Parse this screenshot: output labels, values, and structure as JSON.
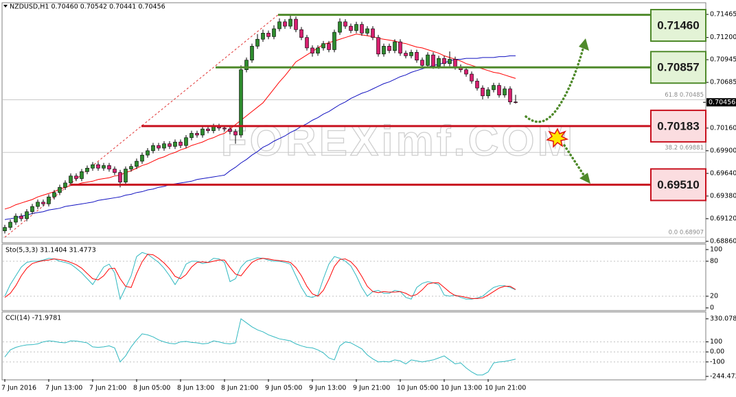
{
  "chart_data": [
    {
      "type": "candlestick",
      "title": "NZDUSD,H1  0.70460 0.70542 0.70441 0.70456",
      "watermark": "FOREXimf.COM",
      "categories": [
        "7 Jun 2016",
        null,
        null,
        null,
        null,
        null,
        null,
        null,
        "7 Jun 13:00",
        null,
        null,
        null,
        null,
        null,
        null,
        null,
        "7 Jun 21:00",
        null,
        null,
        null,
        null,
        null,
        null,
        null,
        "8 Jun 05:00",
        null,
        null,
        null,
        null,
        null,
        null,
        null,
        "8 Jun 13:00",
        null,
        null,
        null,
        null,
        null,
        null,
        null,
        "8 Jun 21:00",
        null,
        null,
        null,
        null,
        null,
        null,
        null,
        "9 Jun 05:00",
        null,
        null,
        null,
        null,
        null,
        null,
        null,
        "9 Jun 13:00",
        null,
        null,
        null,
        null,
        null,
        null,
        null,
        "9 Jun 21:00",
        null,
        null,
        null,
        null,
        null,
        null,
        null,
        "10 Jun 05:00",
        null,
        null,
        null,
        null,
        null,
        null,
        null,
        "10 Jun 13:00",
        null,
        null,
        null,
        null,
        null,
        null,
        null,
        "10 Jun 21:00",
        null,
        null,
        null,
        null,
        null
      ],
      "open": [
        0.6898,
        0.6902,
        0.6908,
        0.6915,
        0.6912,
        0.692,
        0.6926,
        0.6931,
        0.6929,
        0.6937,
        0.6942,
        0.6948,
        0.6953,
        0.6961,
        0.6958,
        0.6966,
        0.697,
        0.6974,
        0.697,
        0.6973,
        0.6969,
        0.6965,
        0.6954,
        0.6969,
        0.6972,
        0.6978,
        0.6985,
        0.699,
        0.6996,
        0.6993,
        0.6998,
        0.6995,
        0.7,
        0.6996,
        0.7005,
        0.701,
        0.7008,
        0.7015,
        0.7013,
        0.7018,
        0.7016,
        0.7015,
        0.7012,
        0.7008,
        0.7083,
        0.7094,
        0.711,
        0.7118,
        0.7125,
        0.7121,
        0.713,
        0.7138,
        0.7133,
        0.7141,
        0.7129,
        0.712,
        0.7108,
        0.7102,
        0.7108,
        0.7113,
        0.7106,
        0.7126,
        0.7138,
        0.7133,
        0.7128,
        0.7135,
        0.7125,
        0.713,
        0.712,
        0.7101,
        0.711,
        0.7105,
        0.7115,
        0.7102,
        0.7099,
        0.7103,
        0.7094,
        0.7088,
        0.71,
        0.7087,
        0.7096,
        0.709,
        0.7095,
        0.7086,
        0.7083,
        0.7078,
        0.707,
        0.7062,
        0.7053,
        0.706,
        0.7065,
        0.7054,
        0.7061,
        0.7046
      ],
      "high": [
        0.6905,
        0.6911,
        0.6918,
        0.6918,
        0.6923,
        0.6929,
        0.6934,
        0.6934,
        0.694,
        0.6945,
        0.6951,
        0.6956,
        0.6964,
        0.6964,
        0.6969,
        0.6973,
        0.6977,
        0.6977,
        0.6976,
        0.6976,
        0.6972,
        0.6968,
        0.6972,
        0.6975,
        0.6981,
        0.6988,
        0.6993,
        0.6999,
        0.6999,
        0.7001,
        0.7001,
        0.7003,
        0.7003,
        0.7008,
        0.7013,
        0.7013,
        0.7018,
        0.7018,
        0.7021,
        0.7021,
        0.7019,
        0.7018,
        0.7015,
        0.7088,
        0.7097,
        0.7113,
        0.7124,
        0.7129,
        0.7128,
        0.7134,
        0.7142,
        0.7141,
        0.7146,
        0.7144,
        0.7132,
        0.7123,
        0.7111,
        0.7111,
        0.7116,
        0.7116,
        0.7129,
        0.7142,
        0.7141,
        0.7136,
        0.7138,
        0.7138,
        0.7133,
        0.7133,
        0.7123,
        0.7113,
        0.7113,
        0.7118,
        0.7118,
        0.7105,
        0.7106,
        0.7106,
        0.7097,
        0.7103,
        0.7103,
        0.7099,
        0.7099,
        0.7104,
        0.7098,
        0.7089,
        0.7086,
        0.7081,
        0.7073,
        0.7065,
        0.7063,
        0.7068,
        0.7068,
        0.7064,
        0.7064,
        0.70542
      ],
      "low": [
        0.6895,
        0.6899,
        0.6905,
        0.6909,
        0.6909,
        0.6917,
        0.6923,
        0.6926,
        0.6926,
        0.6934,
        0.6939,
        0.6945,
        0.695,
        0.6955,
        0.6955,
        0.6963,
        0.6967,
        0.6967,
        0.6967,
        0.6966,
        0.6962,
        0.6948,
        0.6951,
        0.6966,
        0.6969,
        0.6975,
        0.6982,
        0.6987,
        0.699,
        0.699,
        0.6992,
        0.6992,
        0.6993,
        0.6993,
        0.7002,
        0.7005,
        0.7005,
        0.701,
        0.701,
        0.7013,
        0.7012,
        0.7009,
        0.6998,
        0.7005,
        0.708,
        0.7091,
        0.7107,
        0.7115,
        0.7118,
        0.7118,
        0.7127,
        0.713,
        0.713,
        0.7126,
        0.7117,
        0.7105,
        0.7098,
        0.7099,
        0.7105,
        0.7103,
        0.7103,
        0.7123,
        0.713,
        0.7125,
        0.7125,
        0.7122,
        0.7122,
        0.7117,
        0.7098,
        0.7098,
        0.7102,
        0.7102,
        0.7099,
        0.7096,
        0.7096,
        0.7091,
        0.7085,
        0.7085,
        0.7084,
        0.7084,
        0.7087,
        0.7087,
        0.7083,
        0.708,
        0.7075,
        0.7067,
        0.7059,
        0.7049,
        0.705,
        0.7057,
        0.7051,
        0.7051,
        0.7043,
        0.70441
      ],
      "close": [
        0.6902,
        0.6908,
        0.6915,
        0.6912,
        0.692,
        0.6926,
        0.6931,
        0.6929,
        0.6937,
        0.6942,
        0.6948,
        0.6953,
        0.6961,
        0.6958,
        0.6966,
        0.697,
        0.6974,
        0.697,
        0.6973,
        0.6969,
        0.6965,
        0.6954,
        0.6969,
        0.6972,
        0.6978,
        0.6985,
        0.699,
        0.6996,
        0.6993,
        0.6998,
        0.6995,
        0.7,
        0.6996,
        0.7005,
        0.701,
        0.7008,
        0.7015,
        0.7013,
        0.7018,
        0.7016,
        0.7015,
        0.7012,
        0.7008,
        0.7083,
        0.7094,
        0.711,
        0.7118,
        0.7125,
        0.7121,
        0.713,
        0.7138,
        0.7133,
        0.7141,
        0.7129,
        0.712,
        0.7108,
        0.7102,
        0.7108,
        0.7113,
        0.7106,
        0.7126,
        0.7138,
        0.7133,
        0.7128,
        0.7135,
        0.7125,
        0.713,
        0.712,
        0.7101,
        0.711,
        0.7105,
        0.7115,
        0.7102,
        0.7099,
        0.7103,
        0.7094,
        0.7088,
        0.71,
        0.7087,
        0.7096,
        0.709,
        0.7095,
        0.7086,
        0.7083,
        0.7078,
        0.707,
        0.7062,
        0.7053,
        0.706,
        0.7065,
        0.7054,
        0.7061,
        0.7046,
        0.70456
      ],
      "bull_color": "#2e8b2e",
      "bear_color": "#d6206f",
      "lines": [
        {
          "color": "#ff0000",
          "values": [
            0.6923,
            0.6925,
            0.6928,
            0.693,
            0.6932,
            0.6934,
            0.6937,
            0.6939,
            0.6941,
            0.6943,
            0.6946,
            0.6948,
            0.695,
            0.6951,
            0.6953,
            0.6954,
            0.6955,
            0.6957,
            0.6958,
            0.6959,
            0.6961,
            0.6962,
            0.6965,
            0.6967,
            0.697,
            0.6973,
            0.6975,
            0.6978,
            0.6981,
            0.6983,
            0.6986,
            0.6988,
            0.6991,
            0.6993,
            0.6996,
            0.6998,
            0.7,
            0.7003,
            0.7005,
            0.7008,
            0.701,
            0.7015,
            0.702,
            0.7025,
            0.703,
            0.7035,
            0.704,
            0.7045,
            0.7053,
            0.7061,
            0.7069,
            0.7076,
            0.7084,
            0.7092,
            0.7096,
            0.71,
            0.7104,
            0.7108,
            0.7112,
            0.7114,
            0.7116,
            0.7118,
            0.712,
            0.7122,
            0.7124,
            0.7123,
            0.7122,
            0.7121,
            0.7119,
            0.7118,
            0.7117,
            0.7116,
            0.7114,
            0.7113,
            0.7111,
            0.7109,
            0.7108,
            0.7106,
            0.7104,
            0.7102,
            0.7099,
            0.7097,
            0.7095,
            0.7093,
            0.709,
            0.7088,
            0.7086,
            0.7084,
            0.7082,
            0.708,
            0.7079,
            0.7077,
            0.7075,
            0.7073
          ]
        },
        {
          "color": "#1010c0",
          "values": [
            0.6911,
            0.6912,
            0.6913,
            0.6915,
            0.6916,
            0.6918,
            0.6919,
            0.692,
            0.6922,
            0.6923,
            0.6924,
            0.6926,
            0.6927,
            0.6928,
            0.6929,
            0.693,
            0.6931,
            0.6933,
            0.6934,
            0.6935,
            0.6936,
            0.6937,
            0.6939,
            0.694,
            0.6942,
            0.6943,
            0.6945,
            0.6946,
            0.6948,
            0.6949,
            0.6951,
            0.6952,
            0.6953,
            0.6954,
            0.6955,
            0.6957,
            0.6958,
            0.6959,
            0.696,
            0.6961,
            0.6962,
            0.6967,
            0.6971,
            0.6976,
            0.698,
            0.6985,
            0.6989,
            0.6994,
            0.6997,
            0.7001,
            0.7004,
            0.7007,
            0.7011,
            0.7014,
            0.7018,
            0.7021,
            0.7025,
            0.7028,
            0.7032,
            0.7035,
            0.7039,
            0.7043,
            0.7046,
            0.705,
            0.7053,
            0.7056,
            0.7058,
            0.7061,
            0.7064,
            0.7067,
            0.7069,
            0.7072,
            0.7075,
            0.7077,
            0.708,
            0.7082,
            0.7084,
            0.7086,
            0.7088,
            0.7089,
            0.7091,
            0.7093,
            0.7095,
            0.7095,
            0.7096,
            0.7096,
            0.7096,
            0.7097,
            0.7097,
            0.7097,
            0.7098,
            0.7098,
            0.7099,
            0.7099
          ]
        }
      ],
      "levels": [
        {
          "value": 0.7146,
          "label": "0.71460",
          "color": "#4f8a2b",
          "box_color": "#e3f3d6"
        },
        {
          "value": 0.70857,
          "label": "0.70857",
          "color": "#4f8a2b",
          "box_color": "#e3f3d6"
        },
        {
          "value": 0.70183,
          "label": "0.70183",
          "color": "#c8101e",
          "box_color": "#fbdde0"
        },
        {
          "value": 0.6951,
          "label": "0.69510",
          "color": "#c8101e",
          "box_color": "#fbdde0"
        }
      ],
      "fib_levels": [
        {
          "value": 0.70485,
          "label": "61.8 0.70485"
        },
        {
          "value": 0.69881,
          "label": "38.2 0.69881"
        },
        {
          "value": 0.68907,
          "label": "0.0 0.68907"
        }
      ],
      "ylim": [
        0.68844,
        0.71591
      ],
      "yticks": [
        {
          "value": 0.71465,
          "label": "0.71465"
        },
        {
          "value": 0.712,
          "label": "0.71200"
        },
        {
          "value": 0.70945,
          "label": "0.70945"
        },
        {
          "value": 0.70685,
          "label": "0.70685"
        },
        {
          "value": 0.7016,
          "label": "0.70160"
        },
        {
          "value": 0.699,
          "label": "0.69900"
        },
        {
          "value": 0.6964,
          "label": "0.69640"
        },
        {
          "value": 0.6938,
          "label": "0.69380"
        },
        {
          "value": 0.6912,
          "label": "0.69120"
        },
        {
          "value": 0.6886,
          "label": "0.68860"
        }
      ]
    },
    {
      "type": "line",
      "title": "Sto(5,3,3) 31.1404 31.4773",
      "series": [
        {
          "color": "#30b8c0",
          "values": [
            20,
            40,
            55,
            70,
            78,
            80,
            80,
            82,
            85,
            84,
            80,
            78,
            75,
            68,
            60,
            50,
            40,
            55,
            70,
            75,
            60,
            15,
            35,
            55,
            88,
            95,
            92,
            85,
            78,
            68,
            55,
            40,
            55,
            75,
            80,
            80,
            76,
            78,
            85,
            84,
            78,
            45,
            50,
            70,
            80,
            83,
            86,
            85,
            82,
            80,
            80,
            78,
            75,
            55,
            35,
            20,
            18,
            22,
            50,
            75,
            88,
            85,
            80,
            72,
            55,
            35,
            20,
            28,
            30,
            25,
            25,
            30,
            28,
            18,
            15,
            35,
            42,
            45,
            43,
            40,
            22,
            20,
            22,
            18,
            15,
            15,
            17,
            20,
            28,
            35,
            38,
            38,
            35,
            31.1404
          ]
        },
        {
          "color": "#ff0000",
          "values": [
            18,
            25,
            38,
            55,
            68,
            76,
            79,
            81,
            82,
            84,
            83,
            81,
            78,
            74,
            68,
            59,
            50,
            48,
            55,
            67,
            68,
            50,
            37,
            35,
            59,
            79,
            92,
            91,
            85,
            77,
            67,
            54,
            50,
            57,
            70,
            78,
            79,
            78,
            80,
            82,
            82,
            69,
            58,
            55,
            67,
            78,
            83,
            85,
            84,
            82,
            81,
            80,
            78,
            69,
            55,
            37,
            24,
            20,
            30,
            49,
            71,
            83,
            84,
            79,
            69,
            54,
            37,
            28,
            26,
            28,
            27,
            27,
            28,
            25,
            20,
            23,
            31,
            41,
            43,
            43,
            35,
            27,
            21,
            20,
            18,
            16,
            16,
            17,
            22,
            28,
            34,
            37,
            37,
            31.4773
          ]
        }
      ],
      "ylim": [
        -3.5,
        108.2
      ],
      "yticks": [
        100,
        80,
        20,
        0
      ],
      "grid": true
    },
    {
      "type": "line",
      "title": "CCI(14) -71.9781",
      "series": [
        {
          "color": "#30b8c0",
          "values": [
            -50,
            20,
            45,
            60,
            70,
            72,
            80,
            100,
            110,
            105,
            95,
            90,
            110,
            108,
            100,
            90,
            50,
            45,
            50,
            60,
            40,
            -100,
            -40,
            50,
            120,
            180,
            170,
            150,
            120,
            100,
            85,
            80,
            100,
            105,
            95,
            90,
            80,
            85,
            110,
            100,
            85,
            80,
            90,
            330,
            290,
            250,
            220,
            200,
            170,
            150,
            130,
            120,
            110,
            80,
            60,
            45,
            40,
            20,
            -10,
            -60,
            -80,
            60,
            100,
            90,
            60,
            30,
            -30,
            -70,
            -100,
            -95,
            -100,
            -80,
            -90,
            -120,
            -80,
            -90,
            -100,
            -90,
            -80,
            -60,
            -40,
            -80,
            -120,
            -110,
            -160,
            -200,
            -230,
            -230,
            -200,
            -110,
            -100,
            -95,
            -85,
            -71.9781
          ]
        }
      ],
      "ylim": [
        -272,
        398
      ],
      "yticks": [
        330.0782,
        100,
        {
          "value": 0,
          "label": "0.00"
        },
        -100,
        -244.4723
      ],
      "grid": true
    }
  ]
}
